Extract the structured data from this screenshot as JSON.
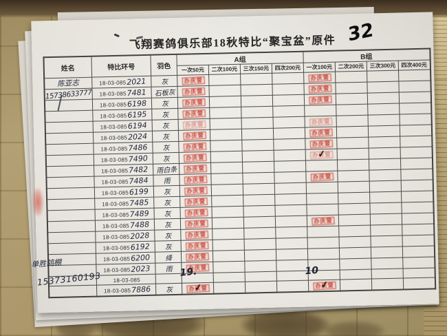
{
  "title": "飞翔赛鸽俱乐部18秋特比“聚宝盆”原件",
  "page_number": "32",
  "stamp": {
    "text": "办庆营",
    "color": "#c22616",
    "meaning": "red-seal-paid-stamp"
  },
  "table": {
    "headers": {
      "name": "姓名",
      "ring": "特比环号",
      "color": "羽色",
      "groupA": "A组",
      "groupB": "B组",
      "a_cols": [
        "一次50元",
        "二次100元",
        "三次150元",
        "四次200元"
      ],
      "b_cols": [
        "一次100元",
        "二次200元",
        "三次300元",
        "四次400元"
      ]
    },
    "ring_prefix": "18-03-085",
    "rows": [
      {
        "name": "陈亚志",
        "ring_suffix": "2021",
        "color": "灰",
        "a1": true,
        "b1": true
      },
      {
        "name": "15738633777",
        "ring_suffix": "7481",
        "color": "石板灰",
        "a1": true,
        "b1": true
      },
      {
        "name": "",
        "ring_suffix": "6198",
        "color": "灰",
        "a1": true,
        "b1": true
      },
      {
        "name": "",
        "ring_suffix": "6195",
        "color": "灰",
        "a1": true,
        "b1": false
      },
      {
        "name": "",
        "ring_suffix": "6194",
        "color": "灰",
        "a1": true,
        "b1": true
      },
      {
        "name": "",
        "ring_suffix": "2024",
        "color": "灰",
        "a1": true,
        "b1": true
      },
      {
        "name": "",
        "ring_suffix": "7486",
        "color": "灰",
        "a1": true,
        "b1": true
      },
      {
        "name": "",
        "ring_suffix": "7490",
        "color": "灰",
        "a1": true,
        "b1": true,
        "b1_check": true
      },
      {
        "name": "",
        "ring_suffix": "7482",
        "color": "雨白条",
        "a1": true,
        "b1": false
      },
      {
        "name": "",
        "ring_suffix": "7484",
        "color": "雨",
        "a1": true,
        "b1": true
      },
      {
        "name": "",
        "ring_suffix": "6199",
        "color": "灰",
        "a1": true,
        "b1": false
      },
      {
        "name": "",
        "ring_suffix": "7485",
        "color": "灰",
        "a1": true,
        "b1": false
      },
      {
        "name": "",
        "ring_suffix": "7489",
        "color": "灰",
        "a1": true,
        "b1": false
      },
      {
        "name": "",
        "ring_suffix": "7488",
        "color": "灰",
        "a1": true,
        "b1": true
      },
      {
        "name": "",
        "ring_suffix": "2028",
        "color": "灰",
        "a1": true,
        "b1": false
      },
      {
        "name": "",
        "ring_suffix": "6192",
        "color": "灰",
        "a1": true,
        "b1": false
      },
      {
        "name": "",
        "ring_suffix": "6200",
        "color": "绛",
        "a1": true,
        "b1": false
      },
      {
        "name": "",
        "ring_suffix": "2023",
        "color": "雨",
        "a1": true,
        "b1": false
      },
      {
        "name": "",
        "ring_suffix": "",
        "color": "",
        "a1": false,
        "b1": false
      },
      {
        "name": "单胜鸽棚",
        "ring_suffix": "7886",
        "color": "灰",
        "a1": true,
        "a1_check": true,
        "b1": true,
        "b1_check": true
      }
    ],
    "footer": {
      "a_count": "19.",
      "b_count": "10",
      "phone": "15373160193"
    }
  }
}
